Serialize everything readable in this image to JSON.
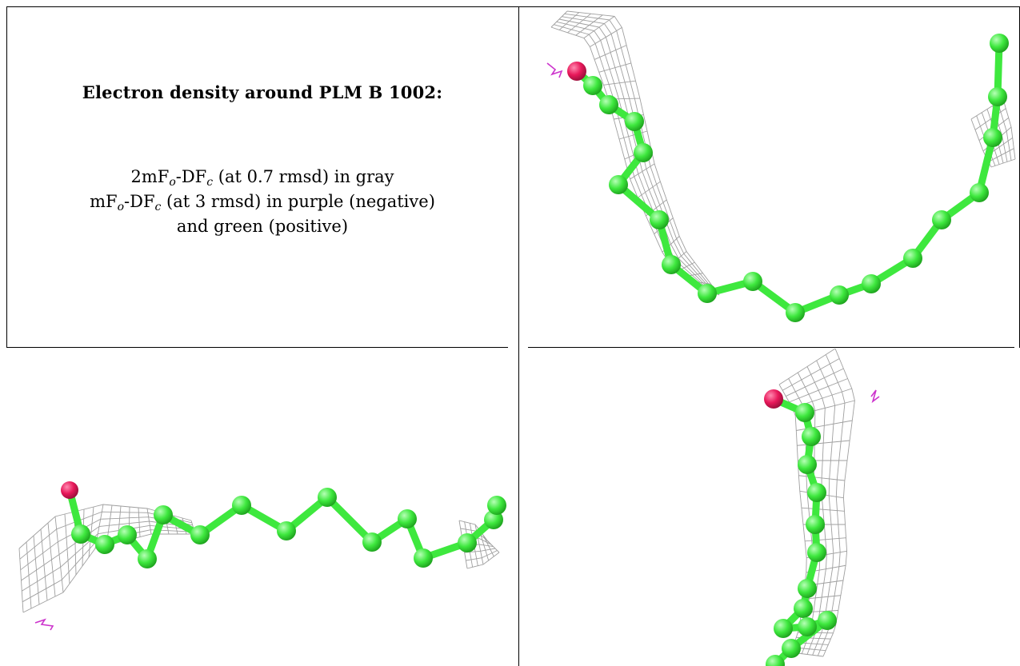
{
  "title": "Electron density around PLM B 1002:",
  "legend": {
    "line1": {
      "prefix": "2mF",
      "sub_o": "o",
      "mid": "-DF",
      "sub_c": "c",
      "suffix": " (at 0.7 rmsd) in gray"
    },
    "line2": {
      "prefix": "mF",
      "sub_o": "o",
      "mid": "-DF",
      "sub_c": "c",
      "suffix": " (at 3 rmsd) in purple (negative)"
    },
    "line3": "and green (positive)"
  },
  "colors": {
    "carbon": "#3ee83e",
    "oxygen": "#e8185a",
    "mesh": "#9a9a9a",
    "negative_density": "#cc33cc",
    "rule": "#000000"
  },
  "views": [
    {
      "name": "view-top-right",
      "ligand": "PLM B 1002"
    },
    {
      "name": "view-bottom-left",
      "ligand": "PLM B 1002"
    },
    {
      "name": "view-bottom-right",
      "ligand": "PLM B 1002"
    }
  ]
}
